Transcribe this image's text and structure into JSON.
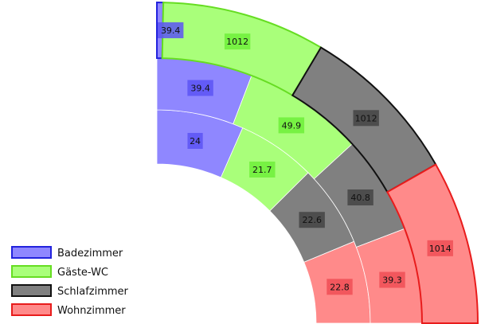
{
  "chart_data": {
    "type": "sunburst",
    "title": "",
    "legend_position": "bottom-left",
    "categories": [
      "Badezimmer",
      "Gäste-WC",
      "Schlafzimmer",
      "Wohnzimmer"
    ],
    "colors": {
      "Badezimmer": {
        "fill": "#8F87FF",
        "stroke": "#2222DD",
        "label_bg": "#5C54F5"
      },
      "Gäste-WC": {
        "fill": "#A9FF7A",
        "stroke": "#66DD22",
        "label_bg": "#6EF03A"
      },
      "Schlafzimmer": {
        "fill": "#808080",
        "stroke": "#111111",
        "label_bg": "#444444"
      },
      "Wohnzimmer": {
        "fill": "#FF8A8A",
        "stroke": "#E81C1C",
        "label_bg": "#F04E55"
      }
    },
    "rings": [
      {
        "name": "inner",
        "values": [
          {
            "category": "Badezimmer",
            "value": 24,
            "label": "24"
          },
          {
            "category": "Gäste-WC",
            "value": 21.7,
            "label": "21.7"
          },
          {
            "category": "Schlafzimmer",
            "value": 22.6,
            "label": "22.6"
          },
          {
            "category": "Wohnzimmer",
            "value": 22.8,
            "label": "22.8"
          }
        ]
      },
      {
        "name": "middle",
        "values": [
          {
            "category": "Badezimmer",
            "value": 39.4,
            "label": "39.4"
          },
          {
            "category": "Gäste-WC",
            "value": 49.9,
            "label": "49.9"
          },
          {
            "category": "Schlafzimmer",
            "value": 40.8,
            "label": "40.8"
          },
          {
            "category": "Wohnzimmer",
            "value": 39.3,
            "label": "39.3"
          }
        ]
      },
      {
        "name": "outer",
        "values": [
          {
            "category": "Badezimmer",
            "value": 39.4,
            "label": "39.4"
          },
          {
            "category": "Gäste-WC",
            "value": 1012,
            "label": "1012"
          },
          {
            "category": "Schlafzimmer",
            "value": 1012,
            "label": "1012"
          },
          {
            "category": "Wohnzimmer",
            "value": 1014,
            "label": "1014"
          }
        ]
      }
    ]
  }
}
